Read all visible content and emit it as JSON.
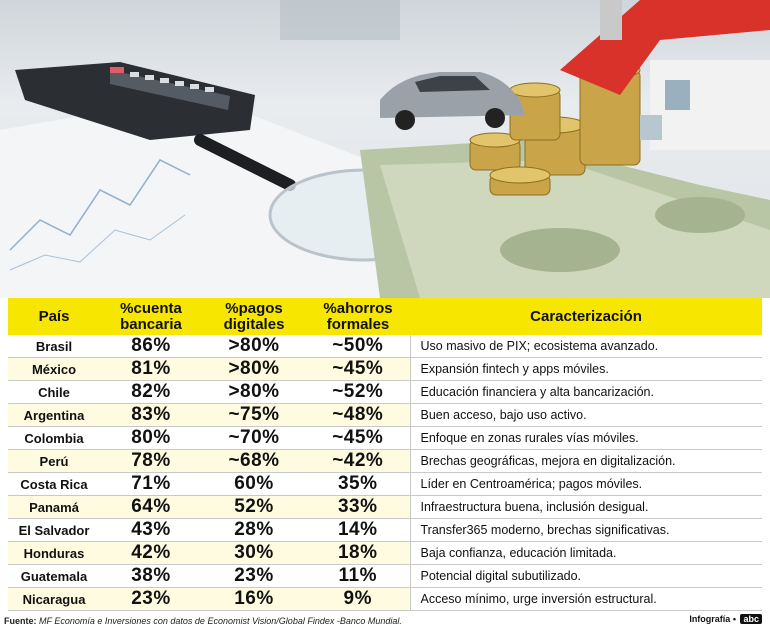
{
  "table": {
    "headers": {
      "pais": "País",
      "cuenta_line1": "%cuenta",
      "cuenta_line2": "bancaria",
      "pagos_line1": "%pagos",
      "pagos_line2": "digitales",
      "ahorros_line1": "%ahorros",
      "ahorros_line2": "formales",
      "caracterizacion": "Caracterización"
    },
    "rows": [
      {
        "pais": "Brasil",
        "cuenta": "86%",
        "pagos": ">80%",
        "ahorros": "~50%",
        "desc": "Uso masivo de PIX; ecosistema avanzado."
      },
      {
        "pais": "México",
        "cuenta": "81%",
        "pagos": ">80%",
        "ahorros": "~45%",
        "desc": "Expansión fintech y apps móviles."
      },
      {
        "pais": "Chile",
        "cuenta": "82%",
        "pagos": ">80%",
        "ahorros": "~52%",
        "desc": "Educación financiera y alta bancarización."
      },
      {
        "pais": "Argentina",
        "cuenta": "83%",
        "pagos": "~75%",
        "ahorros": "~48%",
        "desc": "Buen acceso, bajo uso activo."
      },
      {
        "pais": "Colombia",
        "cuenta": "80%",
        "pagos": "~70%",
        "ahorros": "~45%",
        "desc": "Enfoque en zonas rurales vías móviles."
      },
      {
        "pais": "Perú",
        "cuenta": "78%",
        "pagos": "~68%",
        "ahorros": "~42%",
        "desc": "Brechas geográficas, mejora en digitalización."
      },
      {
        "pais": "Costa Rica",
        "cuenta": "71%",
        "pagos": "60%",
        "ahorros": "35%",
        "desc": "Líder en Centroamérica; pagos móviles."
      },
      {
        "pais": "Panamá",
        "cuenta": "64%",
        "pagos": "52%",
        "ahorros": "33%",
        "desc": "Infraestructura buena, inclusión desigual."
      },
      {
        "pais": "El Salvador",
        "cuenta": "43%",
        "pagos": "28%",
        "ahorros": "14%",
        "desc": "Transfer365 moderno, brechas significativas."
      },
      {
        "pais": "Honduras",
        "cuenta": "42%",
        "pagos": "30%",
        "ahorros": "18%",
        "desc": "Baja confianza, educación limitada."
      },
      {
        "pais": "Guatemala",
        "cuenta": "38%",
        "pagos": "23%",
        "ahorros": "11%",
        "desc": "Potencial digital subutilizado."
      },
      {
        "pais": "Nicaragua",
        "cuenta": "23%",
        "pagos": "16%",
        "ahorros": "9%",
        "desc": "Acceso mínimo, urge inversión estructural."
      }
    ]
  },
  "footer": {
    "source_label": "Fuente:",
    "source_text": "MF Economía e Inversiones con datos de Economist Vision/Global Findex -Banco Mundial.",
    "credit": "Infografía •",
    "logo": "abc"
  },
  "colors": {
    "header_bg": "#f7e600",
    "row_alt": "#fffbe0"
  }
}
